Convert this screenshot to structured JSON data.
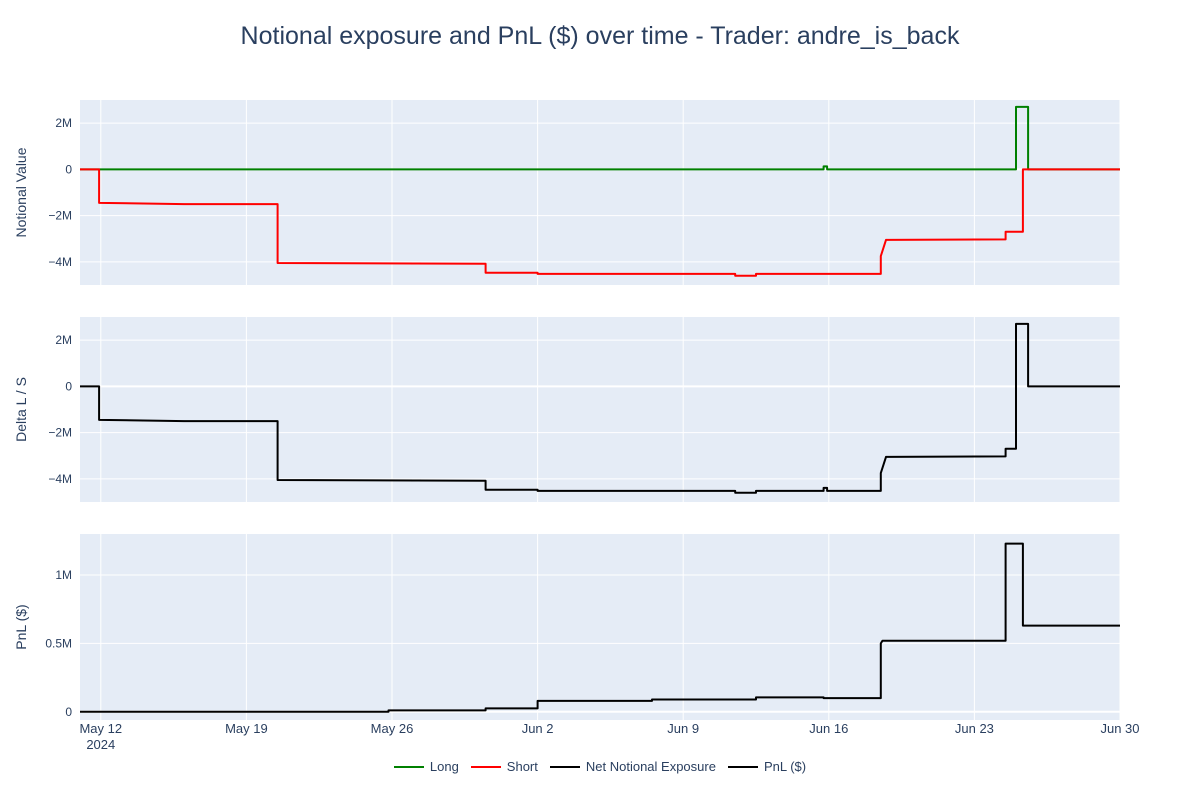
{
  "chart_data": {
    "type": "line",
    "title": "Notional exposure and PnL ($) over time - Trader: andre_is_back",
    "x_range": [
      "2024-05-11",
      "2024-06-30"
    ],
    "x_ticks": [
      {
        "date": "2024-05-12",
        "label": "May 12",
        "sublabel": "2024"
      },
      {
        "date": "2024-05-19",
        "label": "May 19",
        "sublabel": ""
      },
      {
        "date": "2024-05-26",
        "label": "May 26",
        "sublabel": ""
      },
      {
        "date": "2024-06-02",
        "label": "Jun 2",
        "sublabel": ""
      },
      {
        "date": "2024-06-09",
        "label": "Jun 9",
        "sublabel": ""
      },
      {
        "date": "2024-06-16",
        "label": "Jun 16",
        "sublabel": ""
      },
      {
        "date": "2024-06-23",
        "label": "Jun 23",
        "sublabel": ""
      },
      {
        "date": "2024-06-30",
        "label": "Jun 30",
        "sublabel": ""
      }
    ],
    "colors": {
      "plot_bg": "#e5ecf6",
      "grid": "#ffffff",
      "long": "#008000",
      "short": "#ff0000",
      "net": "#000000",
      "pnl": "#000000",
      "text": "#2a3f5f"
    },
    "legend": [
      {
        "name": "Long",
        "color": "#008000"
      },
      {
        "name": "Short",
        "color": "#ff0000"
      },
      {
        "name": "Net Notional Exposure",
        "color": "#000000"
      },
      {
        "name": "PnL ($)",
        "color": "#000000"
      }
    ],
    "panels": [
      {
        "ylabel": "Notional Value",
        "ylim": [
          -5000000,
          3000000
        ],
        "yticks": [
          {
            "v": 2000000,
            "label": "2M"
          },
          {
            "v": 0,
            "label": "0"
          },
          {
            "v": -2000000,
            "label": "−2M"
          },
          {
            "v": -4000000,
            "label": "−4M"
          }
        ],
        "series": [
          {
            "name": "Long",
            "color": "#008000",
            "points": [
              [
                "2024-05-11",
                0
              ],
              [
                "2024-06-15 18:00",
                0
              ],
              [
                "2024-06-15 18:00",
                130000
              ],
              [
                "2024-06-15 22:00",
                130000
              ],
              [
                "2024-06-15 22:00",
                0
              ],
              [
                "2024-06-25 00:00",
                0
              ],
              [
                "2024-06-25 00:00",
                2700000
              ],
              [
                "2024-06-25 14:00",
                2700000
              ],
              [
                "2024-06-25 14:00",
                0
              ],
              [
                "2024-06-30",
                0
              ]
            ]
          },
          {
            "name": "Short",
            "color": "#ff0000",
            "points": [
              [
                "2024-05-11",
                0
              ],
              [
                "2024-05-11 22:00",
                0
              ],
              [
                "2024-05-11 22:00",
                -1450000
              ],
              [
                "2024-05-16",
                -1500000
              ],
              [
                "2024-05-20 12:00",
                -1500000
              ],
              [
                "2024-05-20 12:00",
                -4050000
              ],
              [
                "2024-05-30 12:00",
                -4080000
              ],
              [
                "2024-05-30 12:00",
                -4470000
              ],
              [
                "2024-06-02",
                -4470000
              ],
              [
                "2024-06-02",
                -4520000
              ],
              [
                "2024-06-11 12:00",
                -4520000
              ],
              [
                "2024-06-11 12:00",
                -4600000
              ],
              [
                "2024-06-12 12:00",
                -4600000
              ],
              [
                "2024-06-12 12:00",
                -4520000
              ],
              [
                "2024-06-15 18:00",
                -4520000
              ],
              [
                "2024-06-18 12:00",
                -4520000
              ],
              [
                "2024-06-18 12:00",
                -3750000
              ],
              [
                "2024-06-18 18:00",
                -3050000
              ],
              [
                "2024-06-24 12:00",
                -3030000
              ],
              [
                "2024-06-24 12:00",
                -2700000
              ],
              [
                "2024-06-25 08:00",
                -2700000
              ],
              [
                "2024-06-25 08:00",
                0
              ],
              [
                "2024-06-30",
                0
              ]
            ]
          }
        ]
      },
      {
        "ylabel": "Delta L / S",
        "ylim": [
          -5000000,
          3000000
        ],
        "yticks": [
          {
            "v": 2000000,
            "label": "2M"
          },
          {
            "v": 0,
            "label": "0"
          },
          {
            "v": -2000000,
            "label": "−2M"
          },
          {
            "v": -4000000,
            "label": "−4M"
          }
        ],
        "series": [
          {
            "name": "Net Notional Exposure",
            "color": "#000000",
            "points": [
              [
                "2024-05-11",
                0
              ],
              [
                "2024-05-11 22:00",
                0
              ],
              [
                "2024-05-11 22:00",
                -1450000
              ],
              [
                "2024-05-16",
                -1500000
              ],
              [
                "2024-05-20 12:00",
                -1500000
              ],
              [
                "2024-05-20 12:00",
                -4050000
              ],
              [
                "2024-05-30 12:00",
                -4080000
              ],
              [
                "2024-05-30 12:00",
                -4470000
              ],
              [
                "2024-06-02",
                -4470000
              ],
              [
                "2024-06-02",
                -4520000
              ],
              [
                "2024-06-11 12:00",
                -4520000
              ],
              [
                "2024-06-11 12:00",
                -4600000
              ],
              [
                "2024-06-12 12:00",
                -4600000
              ],
              [
                "2024-06-12 12:00",
                -4520000
              ],
              [
                "2024-06-15 18:00",
                -4520000
              ],
              [
                "2024-06-15 18:00",
                -4390000
              ],
              [
                "2024-06-15 22:00",
                -4390000
              ],
              [
                "2024-06-15 22:00",
                -4520000
              ],
              [
                "2024-06-18 12:00",
                -4520000
              ],
              [
                "2024-06-18 12:00",
                -3750000
              ],
              [
                "2024-06-18 18:00",
                -3050000
              ],
              [
                "2024-06-24 12:00",
                -3030000
              ],
              [
                "2024-06-24 12:00",
                -2700000
              ],
              [
                "2024-06-25 00:00",
                -2700000
              ],
              [
                "2024-06-25 00:00",
                2700000
              ],
              [
                "2024-06-25 14:00",
                2700000
              ],
              [
                "2024-06-25 14:00",
                0
              ],
              [
                "2024-06-30",
                0
              ]
            ]
          }
        ]
      },
      {
        "ylabel": "PnL ($)",
        "ylim": [
          -60000,
          1300000
        ],
        "yticks": [
          {
            "v": 1000000,
            "label": "1M"
          },
          {
            "v": 500000,
            "label": "0.5M"
          },
          {
            "v": 0,
            "label": "0"
          }
        ],
        "series": [
          {
            "name": "PnL ($)",
            "color": "#000000",
            "points": [
              [
                "2024-05-11",
                0
              ],
              [
                "2024-05-25 20:00",
                0
              ],
              [
                "2024-05-25 20:00",
                10000
              ],
              [
                "2024-05-30 12:00",
                10000
              ],
              [
                "2024-05-30 12:00",
                25000
              ],
              [
                "2024-06-02",
                25000
              ],
              [
                "2024-06-02",
                80000
              ],
              [
                "2024-06-07 12:00",
                80000
              ],
              [
                "2024-06-07 12:00",
                90000
              ],
              [
                "2024-06-12 12:00",
                90000
              ],
              [
                "2024-06-12 12:00",
                105000
              ],
              [
                "2024-06-15 18:00",
                105000
              ],
              [
                "2024-06-15 18:00",
                100000
              ],
              [
                "2024-06-18 12:00",
                100000
              ],
              [
                "2024-06-18 12:00",
                500000
              ],
              [
                "2024-06-18 14:00",
                520000
              ],
              [
                "2024-06-24 12:00",
                520000
              ],
              [
                "2024-06-24 12:00",
                1230000
              ],
              [
                "2024-06-25 08:00",
                1230000
              ],
              [
                "2024-06-25 08:00",
                630000
              ],
              [
                "2024-06-30",
                630000
              ]
            ]
          }
        ]
      }
    ]
  }
}
